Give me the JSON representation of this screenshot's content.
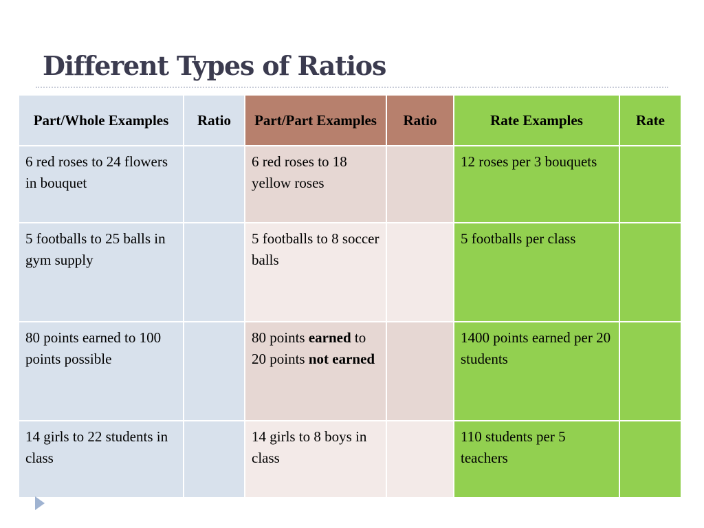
{
  "slide": {
    "title": "Different Types of Ratios"
  },
  "table": {
    "headers": {
      "part_whole": "Part/Whole Examples",
      "ratio_1": "Ratio",
      "part_part": "Part/Part Examples",
      "ratio_2": "Ratio",
      "rate_examples": "Rate Examples",
      "rate": "Rate"
    },
    "rows": [
      {
        "part_whole": "6 red roses to 24 flowers in bouquet",
        "ratio_1": "",
        "part_part": "6 red roses to 18 yellow roses",
        "ratio_2": "",
        "rate_examples": "12 roses per 3 bouquets",
        "rate": ""
      },
      {
        "part_whole": "5 footballs to 25 balls in gym supply",
        "ratio_1": "",
        "part_part": "5 footballs to 8 soccer balls",
        "ratio_2": "",
        "rate_examples": "5 footballs per class",
        "rate": ""
      },
      {
        "part_whole": "80 points earned to 100 points possible",
        "ratio_1": "",
        "part_part_segments": [
          "80 points ",
          "earned",
          " to 20 points ",
          "not earned"
        ],
        "ratio_2": "",
        "rate_examples": "1400 points earned per 20 students",
        "rate": ""
      },
      {
        "part_whole": "14 girls to 22 students in class",
        "ratio_1": "",
        "part_part": "14 girls to 8 boys in class",
        "ratio_2": "",
        "rate_examples": "110 students per 5 teachers",
        "rate": ""
      }
    ]
  },
  "colors": {
    "title": "#3b3b4f",
    "part_whole_fill": "#d8e1ec",
    "part_part_header_fill": "#b7806d",
    "part_part_fill_dark": "#e6d7d3",
    "part_part_fill_light": "#f3eae8",
    "rate_fill": "#92d050",
    "bullet_arrow": "#9fb3d1"
  },
  "icons": {
    "bullet": "triangle-arrow-right-icon"
  }
}
